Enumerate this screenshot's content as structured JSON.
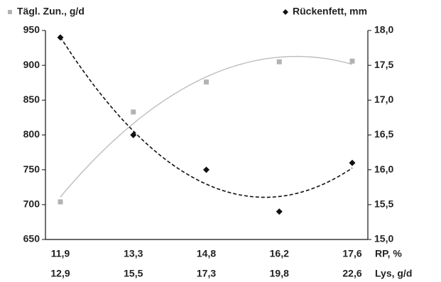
{
  "chart_data": {
    "type": "scatter",
    "categories": [
      "11,9",
      "13,3",
      "14,8",
      "16,2",
      "17,6"
    ],
    "categories2": [
      "12,9",
      "15,5",
      "17,3",
      "19,8",
      "22,6"
    ],
    "xlabel": "RP, %",
    "xlabel2": "Lys, g/d",
    "series": [
      {
        "name": "Tägl. Zun., g/d",
        "color": "#b3b3b3",
        "marker": "square",
        "trend": "solid",
        "trend_color": "#bdbdbd",
        "values": [
          704,
          833,
          876,
          905,
          906
        ]
      },
      {
        "name": "Rückenfett, mm",
        "color": "#111111",
        "marker": "diamond",
        "trend": "dashed",
        "trend_color": "#111111",
        "axis": "y2",
        "values": [
          17.9,
          16.5,
          16.0,
          15.4,
          16.1
        ]
      }
    ],
    "ylim": [
      650,
      950
    ],
    "yticks": [
      650,
      700,
      750,
      800,
      850,
      900,
      950
    ],
    "y2lim": [
      15,
      18
    ],
    "y2ticks": [
      {
        "value": 15,
        "label": "15,0"
      },
      {
        "value": 15.5,
        "label": "15,5"
      },
      {
        "value": 16,
        "label": "16,0"
      },
      {
        "value": 16.5,
        "label": "16,5"
      },
      {
        "value": 17,
        "label": "17,0"
      },
      {
        "value": 17.5,
        "label": "17,5"
      },
      {
        "value": 18,
        "label": "18,0"
      }
    ],
    "grid": false
  }
}
